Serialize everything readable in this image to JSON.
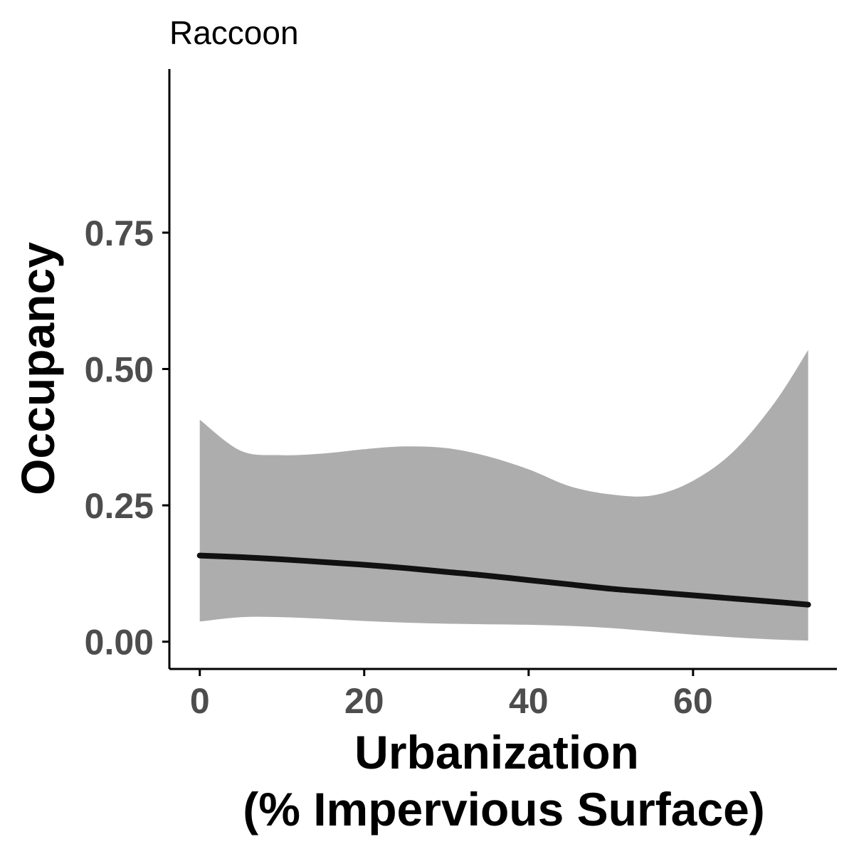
{
  "chart_data": {
    "type": "line",
    "title": "Raccoon",
    "xlabel_line1": "Urbanization",
    "xlabel_line2": "(% Impervious Surface)",
    "ylabel": "Occupancy",
    "xlim": [
      -3.7,
      77.5
    ],
    "ylim": [
      -0.05,
      1.05
    ],
    "x_ticks": [
      0,
      20,
      40,
      60
    ],
    "x_tick_labels": [
      "0",
      "20",
      "40",
      "60"
    ],
    "y_ticks": [
      0,
      0.25,
      0.5,
      0.75
    ],
    "y_tick_labels": [
      "0.00",
      "0.25",
      "0.50",
      "0.75"
    ],
    "grid": false,
    "legend": "none",
    "colors": {
      "line": "#111111",
      "ribbon": "#adadad",
      "axis": "#000000",
      "tick_label": "#4d4d4d"
    },
    "series": [
      {
        "x": [
          0,
          5,
          10,
          15,
          20,
          25,
          30,
          35,
          40,
          45,
          50,
          55,
          60,
          65,
          70,
          74
        ],
        "y": [
          0.158,
          0.155,
          0.151,
          0.146,
          0.141,
          0.135,
          0.128,
          0.121,
          0.113,
          0.105,
          0.097,
          0.091,
          0.085,
          0.079,
          0.073,
          0.068
        ],
        "lower": [
          0.037,
          0.045,
          0.045,
          0.042,
          0.038,
          0.035,
          0.033,
          0.032,
          0.031,
          0.029,
          0.025,
          0.019,
          0.013,
          0.008,
          0.004,
          0.002
        ],
        "upper": [
          0.407,
          0.35,
          0.342,
          0.345,
          0.353,
          0.358,
          0.355,
          0.34,
          0.316,
          0.285,
          0.27,
          0.268,
          0.295,
          0.35,
          0.44,
          0.535
        ]
      }
    ]
  }
}
